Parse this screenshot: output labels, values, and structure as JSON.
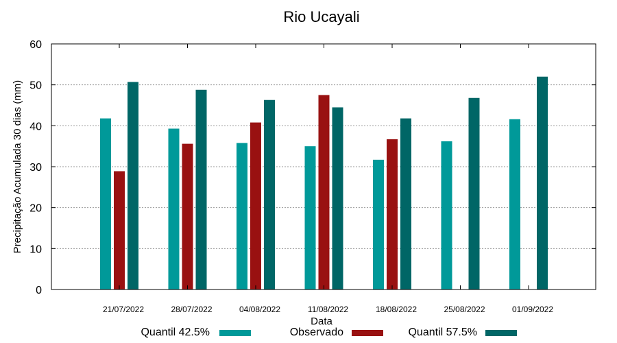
{
  "chart_data": {
    "type": "bar",
    "title": "Rio Ucayali",
    "xlabel": "Data",
    "ylabel": "Precipitação Acumulada 30 dias (mm)",
    "ylim": [
      0,
      60
    ],
    "yticks": [
      0,
      10,
      20,
      30,
      40,
      50,
      60
    ],
    "grid": true,
    "legend_position": "bottom",
    "categories": [
      "21/07/2022",
      "28/07/2022",
      "04/08/2022",
      "11/08/2022",
      "18/08/2022",
      "25/08/2022",
      "01/09/2022"
    ],
    "series": [
      {
        "name": "Quantil 42.5%",
        "color": "#009999",
        "values": [
          41.8,
          39.3,
          35.8,
          35.0,
          31.7,
          36.2,
          41.6
        ]
      },
      {
        "name": "Observado",
        "color": "#991111",
        "values": [
          28.9,
          35.6,
          40.8,
          47.5,
          36.7,
          null,
          null
        ]
      },
      {
        "name": "Quantil 57.5%",
        "color": "#006666",
        "values": [
          50.7,
          48.8,
          46.3,
          44.5,
          41.8,
          46.8,
          52.0
        ]
      }
    ]
  }
}
